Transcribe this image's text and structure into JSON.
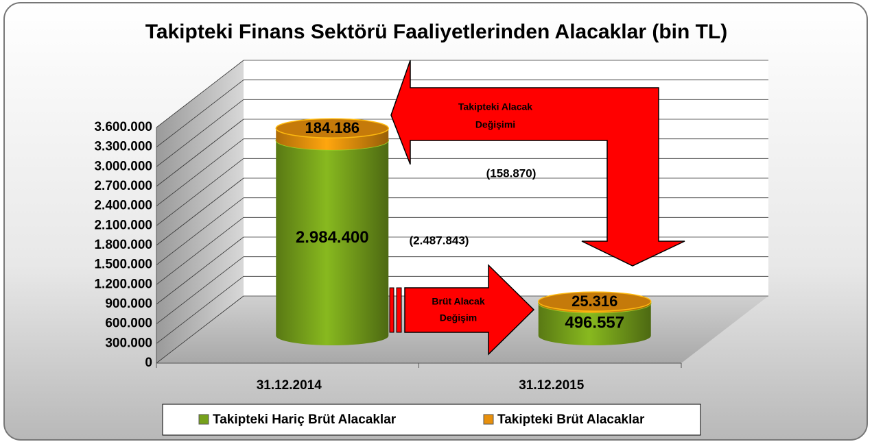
{
  "chart_data": {
    "type": "cylinder-stacked",
    "title": "Takipteki Finans Sektörü Faaliyetlerinden Alacaklar (bin TL)",
    "categories": [
      "31.12.2014",
      "31.12.2015"
    ],
    "series": [
      {
        "name": "Takipteki Hariç Brüt Alacaklar",
        "color": "#76a11b",
        "values": [
          2984400,
          496557
        ],
        "value_labels": [
          "2.984.400",
          "496.557"
        ]
      },
      {
        "name": "Takipteki Brüt Alacaklar",
        "color": "#e8900c",
        "values": [
          184186,
          25316
        ],
        "value_labels": [
          "184.186",
          "25.316"
        ]
      }
    ],
    "ylim": [
      0,
      3600000
    ],
    "yticks": [
      0,
      {
        "value": 300000,
        "label": "300.000"
      },
      {
        "value": 600000,
        "label": "600.000"
      },
      {
        "value": 900000,
        "label": "900.000"
      },
      {
        "value": 1200000,
        "label": "1.200.000"
      },
      {
        "value": 1500000,
        "label": "1.500.000"
      },
      {
        "value": 1800000,
        "label": "1.800.000"
      },
      {
        "value": 2100000,
        "label": "2.100.000"
      },
      {
        "value": 2400000,
        "label": "2.400.000"
      },
      {
        "value": 2700000,
        "label": "2.700.000"
      },
      {
        "value": 3000000,
        "label": "3.000.000"
      },
      {
        "value": 3300000,
        "label": "3.300.000"
      },
      {
        "value": 3600000,
        "label": "3.600.000"
      }
    ],
    "grid": true,
    "legend": "bottom",
    "annotations": [
      {
        "lines": [
          "Takipteki Alacak",
          "Değişimi"
        ]
      },
      {
        "lines": [
          "(158.870)"
        ]
      },
      {
        "lines": [
          "(2.487.843)"
        ]
      },
      {
        "lines": [
          "Brüt Alacak",
          "Değişim"
        ]
      }
    ]
  }
}
